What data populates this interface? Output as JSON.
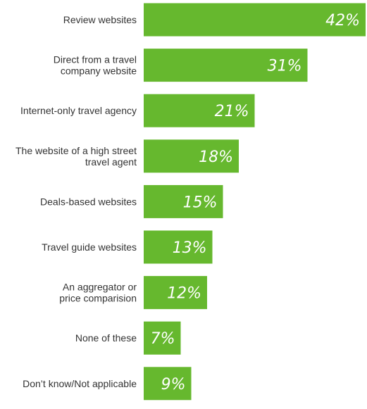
{
  "chart_data": {
    "type": "bar",
    "orientation": "horizontal",
    "categories": [
      [
        "Review websites"
      ],
      [
        "Direct from a travel",
        "company website"
      ],
      [
        "Internet-only travel agency"
      ],
      [
        "The website of a high street",
        "travel agent"
      ],
      [
        "Deals-based websites"
      ],
      [
        "Travel guide websites"
      ],
      [
        "An aggregator or",
        "price comparision"
      ],
      [
        "None of these"
      ],
      [
        "Don’t know/Not applicable"
      ]
    ],
    "values": [
      42,
      31,
      21,
      18,
      15,
      13,
      12,
      7,
      9
    ],
    "value_labels": [
      "42%",
      "31%",
      "21%",
      "18%",
      "15%",
      "13%",
      "12%",
      "7%",
      "9%"
    ],
    "xlim": [
      0,
      42
    ],
    "bar_color": "#66b82e",
    "grid": false,
    "legend": false
  }
}
